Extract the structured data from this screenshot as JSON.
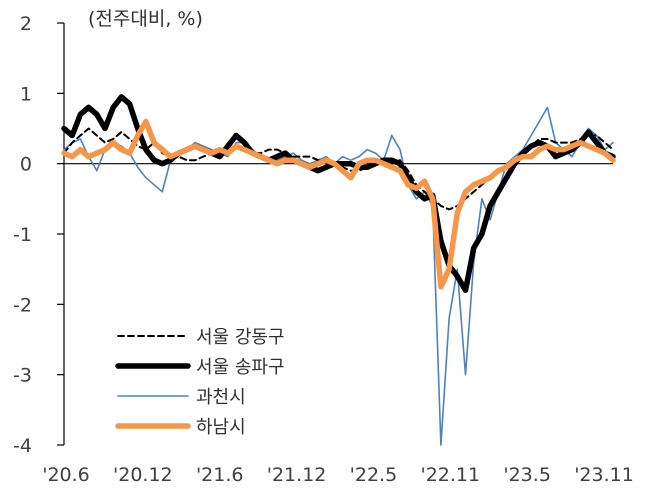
{
  "chart_data": {
    "type": "line",
    "ylabel": "(전주대비, %)",
    "ylim": [
      -4,
      2
    ],
    "y_ticks": [
      "2",
      "1",
      "0",
      "-1",
      "-2",
      "-3",
      "-4"
    ],
    "x_ticks": [
      "'20.6",
      "'20.12",
      "'21.6",
      "'21.12",
      "'22.5",
      "'22.11",
      "'23.5",
      "'23.11"
    ],
    "grid": false,
    "zero_line": true,
    "legend_position": "bottom-left",
    "series": [
      {
        "name": "서울 강동구",
        "color": "#000000",
        "style": "dashed",
        "values": [
          0.15,
          0.3,
          0.4,
          0.5,
          0.4,
          0.3,
          0.35,
          0.45,
          0.35,
          0.25,
          0.2,
          0.3,
          0.15,
          0.1,
          0.1,
          0.05,
          0.05,
          0.1,
          0.15,
          0.15,
          0.2,
          0.25,
          0.2,
          0.15,
          0.15,
          0.2,
          0.2,
          0.15,
          0.1,
          0.1,
          0.1,
          0.05,
          0.05,
          0,
          -0.05,
          -0.1,
          -0.1,
          -0.05,
          0,
          0,
          0,
          0.05,
          -0.1,
          -0.3,
          -0.4,
          -0.5,
          -0.6,
          -0.65,
          -0.6,
          -0.5,
          -0.4,
          -0.3,
          -0.2,
          -0.1,
          -0.05,
          0.05,
          0.15,
          0.25,
          0.35,
          0.35,
          0.3,
          0.3,
          0.3,
          0.35,
          0.4,
          0.4,
          0.3,
          0.2
        ]
      },
      {
        "name": "서울 송파구",
        "color": "#000000",
        "style": "thick",
        "values": [
          0.5,
          0.4,
          0.7,
          0.8,
          0.7,
          0.5,
          0.8,
          0.95,
          0.85,
          0.5,
          0.2,
          0.05,
          0,
          0.05,
          0.15,
          0.2,
          0.25,
          0.2,
          0.15,
          0.1,
          0.25,
          0.4,
          0.3,
          0.15,
          0.1,
          0.05,
          0.1,
          0.15,
          0.05,
          0,
          -0.05,
          -0.1,
          -0.05,
          0,
          0,
          0,
          -0.05,
          -0.05,
          0,
          0.05,
          0.05,
          0,
          -0.2,
          -0.4,
          -0.5,
          -0.45,
          -1.1,
          -1.45,
          -1.6,
          -1.8,
          -1.2,
          -1,
          -0.6,
          -0.4,
          -0.2,
          0,
          0.15,
          0.25,
          0.3,
          0.25,
          0.1,
          0.15,
          0.2,
          0.3,
          0.45,
          0.3,
          0.15,
          0.1
        ]
      },
      {
        "name": "과천시",
        "color": "#4f81bd",
        "style": "thin",
        "values": [
          0.2,
          0.3,
          0.35,
          0.1,
          -0.1,
          0.2,
          0.3,
          0.25,
          0.15,
          -0.05,
          -0.2,
          -0.3,
          -0.4,
          0.05,
          0.15,
          0.2,
          0.3,
          0.25,
          0.2,
          0.15,
          0.1,
          0.3,
          0.3,
          0.2,
          0.1,
          0.05,
          0.05,
          0.1,
          0.15,
          0.05,
          0,
          0.05,
          0.1,
          0,
          0.1,
          0.05,
          0.1,
          0.2,
          0.15,
          0.05,
          0.4,
          0.2,
          -0.3,
          -0.5,
          -0.4,
          -0.6,
          -4,
          -2.2,
          -1.5,
          -3,
          -1.4,
          -0.5,
          -0.8,
          -0.4,
          0,
          0.1,
          0.2,
          0.4,
          0.6,
          0.8,
          0.3,
          0.2,
          0.1,
          0.3,
          0.5,
          0.4,
          0.2,
          0.3
        ]
      },
      {
        "name": "하남시",
        "color": "#f79646",
        "style": "thick",
        "values": [
          0.15,
          0.1,
          0.2,
          0.1,
          0.15,
          0.2,
          0.3,
          0.2,
          0.15,
          0.4,
          0.6,
          0.3,
          0.2,
          0.1,
          0.15,
          0.2,
          0.25,
          0.2,
          0.15,
          0.2,
          0.15,
          0.25,
          0.2,
          0.15,
          0.1,
          0.05,
          0,
          0.05,
          0.05,
          0,
          -0.05,
          0,
          0.05,
          0,
          -0.1,
          -0.2,
          0,
          0.05,
          0.05,
          0,
          -0.05,
          -0.1,
          -0.3,
          -0.35,
          -0.25,
          -0.5,
          -1.75,
          -1.5,
          -0.7,
          -0.4,
          -0.3,
          -0.25,
          -0.2,
          -0.1,
          -0.05,
          0.05,
          0.1,
          0.1,
          0.2,
          0.25,
          0.2,
          0.2,
          0.25,
          0.3,
          0.25,
          0.2,
          0.15,
          0.05
        ]
      }
    ]
  }
}
